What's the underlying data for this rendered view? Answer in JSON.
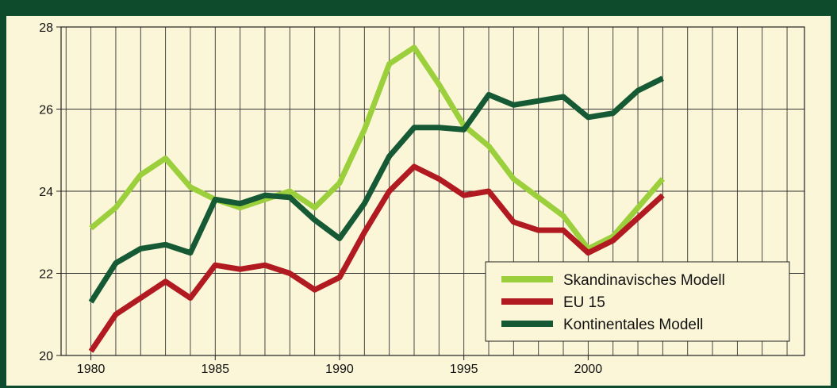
{
  "title": "",
  "chart_data": {
    "type": "line",
    "title": "",
    "xlabel": "",
    "ylabel": "",
    "xlim": [
      1978.8,
      2008.7
    ],
    "ylim": [
      20,
      28
    ],
    "x_ticks": [
      1980,
      1985,
      1990,
      1995,
      2000
    ],
    "y_ticks": [
      20,
      22,
      24,
      26,
      28
    ],
    "grid": true,
    "legend_position": "bottom-right",
    "x": [
      1980,
      1981,
      1982,
      1983,
      1984,
      1985,
      1986,
      1987,
      1988,
      1989,
      1990,
      1991,
      1992,
      1993,
      1994,
      1995,
      1996,
      1997,
      1998,
      1999,
      2000,
      2001,
      2002,
      2003
    ],
    "series": [
      {
        "name": "Skandinavisches Modell",
        "color": "#9ccf3c",
        "values": [
          23.1,
          23.6,
          24.4,
          24.8,
          24.1,
          23.8,
          23.6,
          23.8,
          24.0,
          23.6,
          24.2,
          25.5,
          27.1,
          27.5,
          26.6,
          25.6,
          25.1,
          24.3,
          23.85,
          23.4,
          22.6,
          22.9,
          23.6,
          24.3
        ]
      },
      {
        "name": "EU 15",
        "color": "#b01a20",
        "values": [
          20.1,
          21.0,
          21.4,
          21.8,
          21.4,
          22.2,
          22.1,
          22.2,
          22.0,
          21.6,
          21.9,
          23.0,
          24.0,
          24.6,
          24.3,
          23.9,
          24.0,
          23.25,
          23.05,
          23.05,
          22.5,
          22.8,
          23.35,
          23.9
        ]
      },
      {
        "name": "Kontinentales Modell",
        "color": "#155a34",
        "values": [
          21.3,
          22.25,
          22.6,
          22.7,
          22.5,
          23.8,
          23.7,
          23.9,
          23.85,
          23.3,
          22.85,
          23.7,
          24.85,
          25.55,
          25.55,
          25.5,
          26.35,
          26.1,
          26.2,
          26.3,
          25.8,
          25.9,
          26.45,
          26.75
        ]
      }
    ]
  }
}
